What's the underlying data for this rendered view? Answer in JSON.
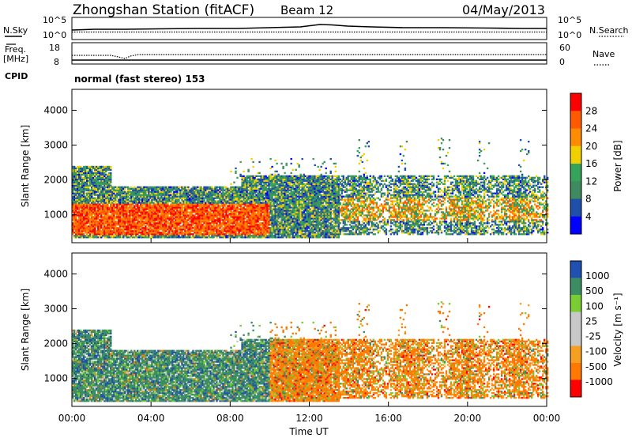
{
  "header": {
    "title": "Zhongshan Station (fitACF)",
    "beam": "Beam 12",
    "date": "04/May/2013"
  },
  "nsky_panel": {
    "left_label": "N.Sky",
    "left_ticks": [
      "10^5",
      "10^0"
    ],
    "right_label": "N.Search",
    "right_ticks": [
      "10^5",
      "10^0"
    ]
  },
  "freq_panel": {
    "left_label_1": "Freq.",
    "left_label_2": "[MHz]",
    "left_ticks": [
      "18",
      "8"
    ],
    "right_label": "Nave",
    "right_ticks": [
      "60",
      "0"
    ]
  },
  "cpid": {
    "label": "CPID",
    "value": "normal (fast stereo) 153"
  },
  "colors": {
    "power_scale": [
      "#0000ff",
      "#1f4fa8",
      "#3f8a5e",
      "#35a35a",
      "#f0d000",
      "#ff8c00",
      "#ff5a00",
      "#ff0000"
    ],
    "velocity_scale": [
      "#ff0000",
      "#ff7800",
      "#f5a020",
      "#c8c8c8",
      "#c8c8c8",
      "#7acc33",
      "#3c8c64",
      "#2050b0"
    ]
  },
  "chart_data": [
    {
      "type": "heatmap",
      "quantity": "power",
      "ylabel": "Slant Range [km]",
      "yticks": [
        "4000",
        "3000",
        "2000",
        "1000"
      ],
      "ylim": [
        200,
        4600
      ],
      "x_axis_start": "00:00",
      "x_axis_end": "24:00",
      "colorbar_label": "Power [dB]",
      "colorbar_ticks": [
        "28",
        "24",
        "20",
        "16",
        "12",
        "8",
        "4"
      ],
      "colorbar_range": [
        0,
        32
      ]
    },
    {
      "type": "heatmap",
      "quantity": "velocity",
      "ylabel": "Slant Range [km]",
      "yticks": [
        "4000",
        "3000",
        "2000",
        "1000"
      ],
      "ylim": [
        200,
        4600
      ],
      "x_axis_start": "00:00",
      "x_axis_end": "24:00",
      "xlabel": "Time UT",
      "xticks": [
        "00:00",
        "04:00",
        "08:00",
        "12:00",
        "16:00",
        "20:00",
        "00:00"
      ],
      "colorbar_label": "Velocity [m s⁻¹]",
      "colorbar_ticks": [
        "1000",
        "500",
        "100",
        "25",
        "-25",
        "-100",
        "-500",
        "-1000"
      ]
    }
  ]
}
